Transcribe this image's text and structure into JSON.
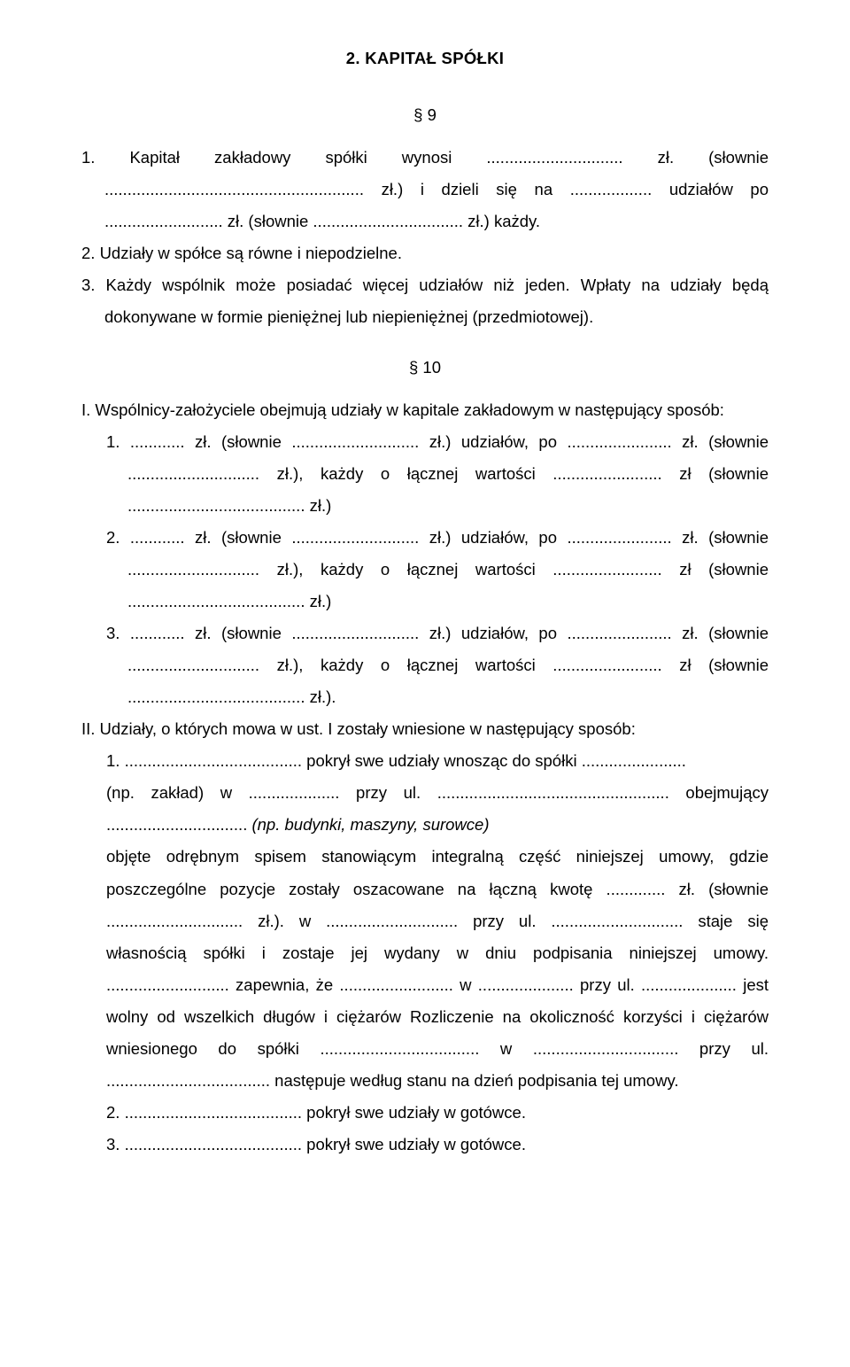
{
  "heading": "2. KAPITAŁ SPÓŁKI",
  "section9": {
    "marker": "§ 9",
    "items": [
      "1. Kapitał zakładowy spółki wynosi .............................. zł. (słownie ......................................................... zł.) i dzieli się na .................. udziałów po .......................... zł. (słownie ................................. zł.) każdy.",
      "2. Udziały w spółce są równe i niepodzielne.",
      "3. Każdy wspólnik może posiadać więcej udziałów niż jeden. Wpłaty na udziały będą dokonywane w formie pieniężnej lub niepieniężnej (przedmiotowej)."
    ]
  },
  "section10": {
    "marker": "§ 10",
    "roman1_intro": "I. Wspólnicy-założyciele obejmują udziały w kapitale zakładowym w następujący sposób:",
    "sub_items_r1": [
      "1. ............ zł. (słownie ............................ zł.) udziałów, po ....................... zł. (słownie ............................. zł.), każdy o łącznej wartości ........................ zł (słownie ....................................... zł.)",
      "2. ............ zł. (słownie ............................ zł.) udziałów, po ....................... zł. (słownie ............................. zł.), każdy o łącznej wartości ........................ zł (słownie ....................................... zł.)",
      "3. ............ zł. (słownie ............................ zł.) udziałów, po ....................... zł. (słownie ............................. zł.), każdy o łącznej wartości ........................ zł (słownie ....................................... zł.)."
    ],
    "roman2_intro": "II. Udziały, o których mowa w ust. I zostały wniesione w następujący sposób:",
    "r2_item1_line1": "1. ....................................... pokrył swe udziały wnosząc do spółki .......................",
    "r2_item1_line2_a": "(np. zakład) w .................... przy ul. ................................................... obejmujący ............................... ",
    "r2_item1_line2_b": "(np. budynki, maszyny, surowce)",
    "r2_item1_cont": "objęte odrębnym spisem stanowiącym integralną część niniejszej umowy, gdzie poszczególne pozycje zostały oszacowane na łączną kwotę ............. zł. (słownie .............................. zł.). w ............................. przy ul. ............................. staje się własnością spółki i zostaje jej  wydany w dniu podpisania niniejszej umowy. ........................... zapewnia, że ......................... w ..................... przy ul. ..................... jest wolny od wszelkich długów i ciężarów Rozliczenie na okoliczność korzyści i ciężarów wniesionego do spółki ................................... w ................................ przy ul. .................................... następuje według stanu na dzień podpisania tej umowy.",
    "r2_item2": "2. ....................................... pokrył swe udziały w gotówce.",
    "r2_item3": "3. ....................................... pokrył swe udziały w gotówce."
  }
}
